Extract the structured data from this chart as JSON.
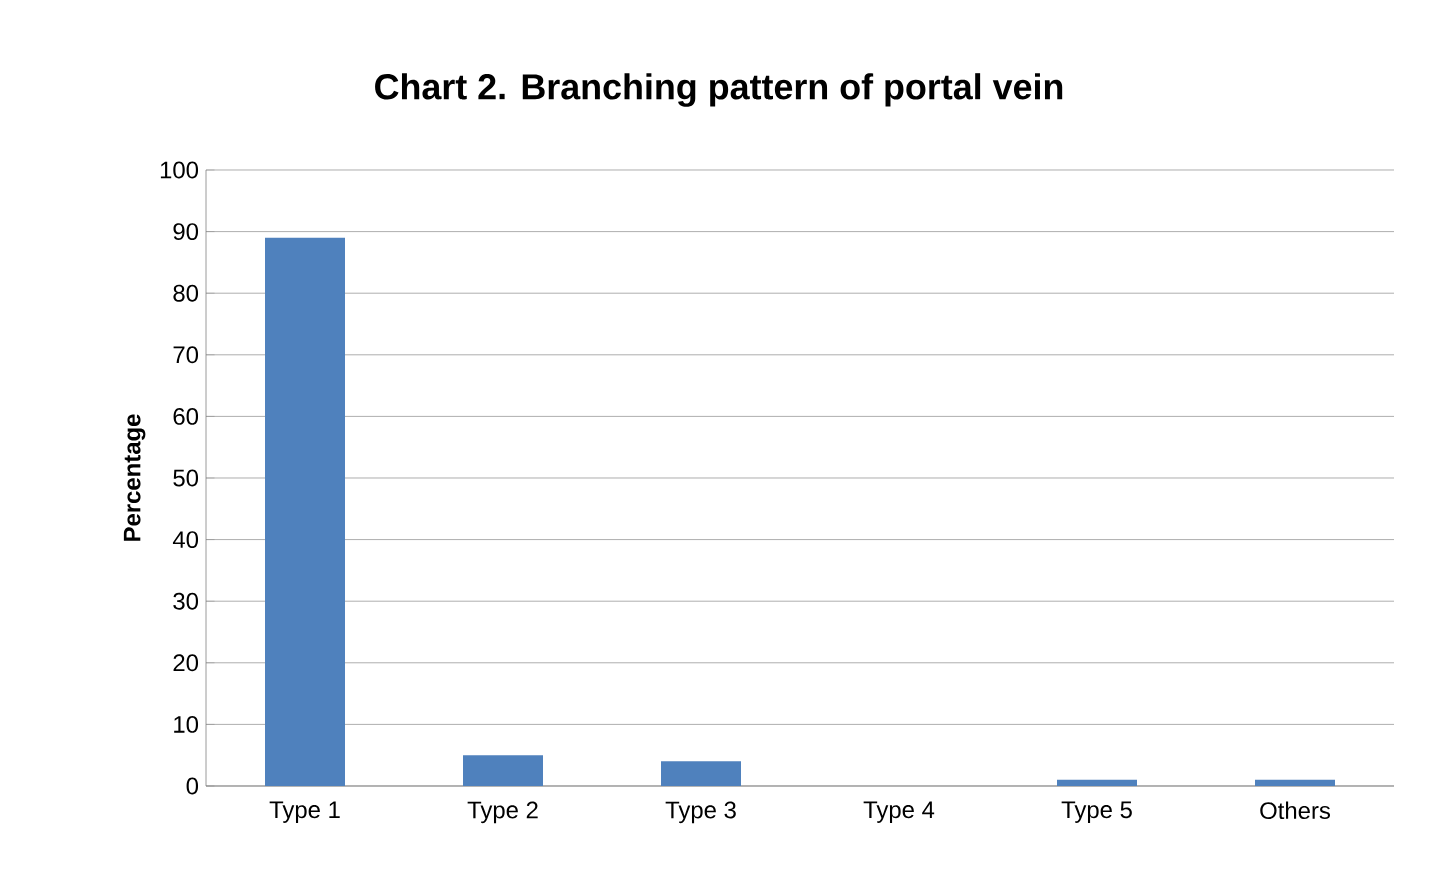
{
  "chart_data": {
    "type": "bar",
    "title": "Chart 2. Branching pattern of portal vein",
    "ylabel": "Percentage",
    "categories": [
      "Type 1",
      "Type 2",
      "Type 3",
      "Type 4",
      "Type 5",
      "Others"
    ],
    "values": [
      89,
      5,
      4,
      0,
      1,
      1
    ],
    "color": "#4f81bd",
    "ylim": [
      0,
      100
    ],
    "yticks": [
      0,
      10,
      20,
      30,
      40,
      50,
      60,
      70,
      80,
      90,
      100
    ],
    "grid": "y"
  }
}
